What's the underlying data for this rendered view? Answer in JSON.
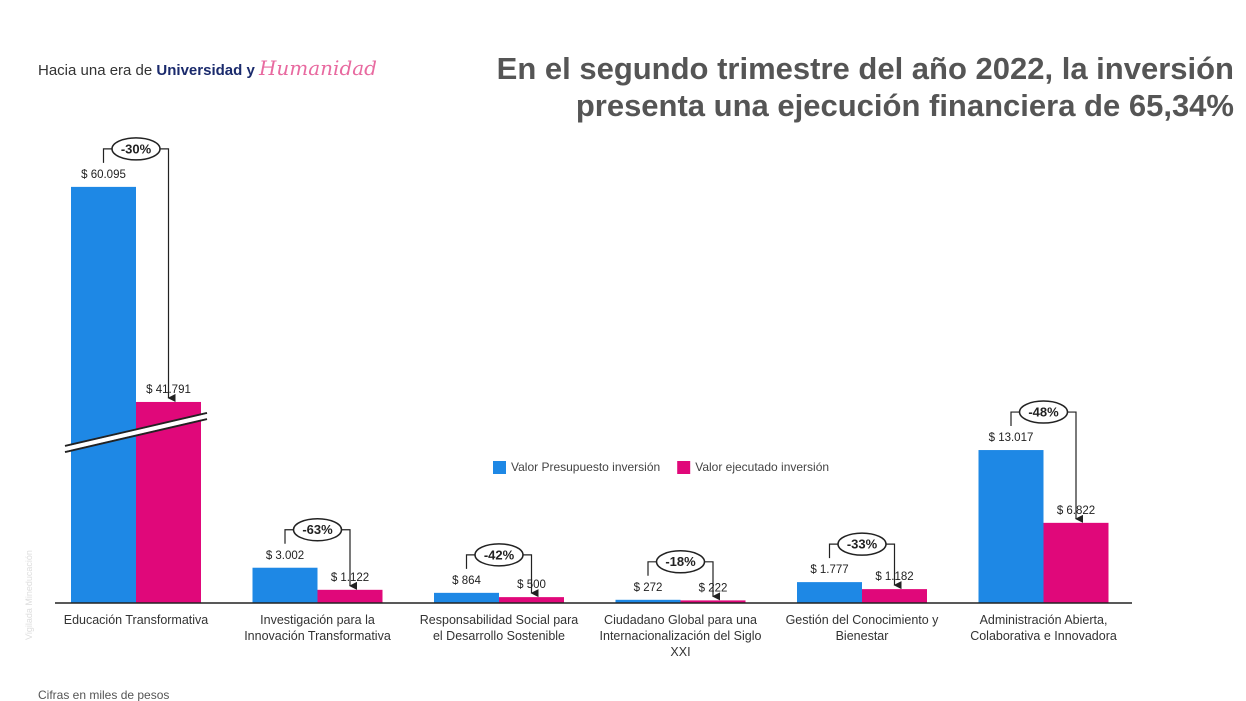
{
  "header": {
    "slogan_prefix": "Hacia una era de",
    "slogan_bold": "Universidad y",
    "slogan_script": "Humanidad",
    "watermark": "Vigilada Mineducación"
  },
  "chart_data": {
    "type": "bar",
    "title": "En el segundo trimestre del año 2022, la inversión presenta una ejecución financiera de 65,34%",
    "categories": [
      "Educación Transformativa",
      "Investigación para la Innovación Transformativa",
      "Responsabilidad Social para el Desarrollo Sostenible",
      "Ciudadano Global para una Internacionalización del Siglo XXI",
      "Gestión del Conocimiento y Bienestar",
      "Administración Abierta, Colaborativa e Innovadora"
    ],
    "series": [
      {
        "name": "Valor Presupuesto inversión",
        "color": "#1e88e5",
        "values": [
          60095,
          3002,
          864,
          272,
          1777,
          13017
        ],
        "value_labels": [
          "$ 60.095",
          "$ 3.002",
          "$ 864",
          "$ 272",
          "$ 1.777",
          "$ 13.017"
        ]
      },
      {
        "name": "Valor ejecutado inversión",
        "color": "#e0087a",
        "values": [
          41791,
          1122,
          500,
          222,
          1182,
          6822
        ],
        "value_labels": [
          "$ 41.791",
          "$ 1.122",
          "$ 500",
          "$ 222",
          "$ 1.182",
          "$ 6.822"
        ]
      }
    ],
    "change_labels": [
      "-30%",
      "-63%",
      "-42%",
      "-18%",
      "-33%",
      "-48%"
    ],
    "axis_break": true,
    "note": "Cifras en miles de pesos"
  }
}
